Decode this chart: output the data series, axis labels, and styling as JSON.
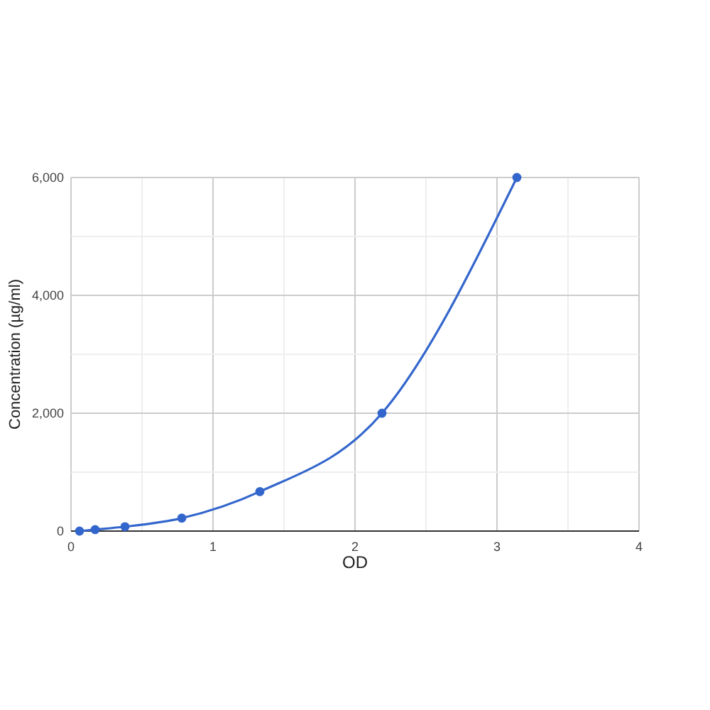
{
  "chart_data": {
    "type": "line",
    "xlabel": "OD",
    "ylabel": "Concentration (µg/ml)",
    "x": [
      0.06,
      0.17,
      0.38,
      0.78,
      1.33,
      2.19,
      3.14
    ],
    "series": [
      {
        "color": "#3366cc",
        "values": [
          0,
          25,
          75,
          220,
          670,
          2000,
          6000
        ]
      }
    ],
    "xlim": [
      0,
      4
    ],
    "ylim": [
      0,
      6000
    ],
    "xticks": [
      0,
      {
        "value": 0.5,
        "label": null
      },
      1,
      {
        "value": 1.5,
        "label": null
      },
      2,
      {
        "value": 2.5,
        "label": null
      },
      3,
      {
        "value": 3.5,
        "label": null
      },
      4
    ],
    "yticks": [
      {
        "value": 0,
        "label": "0"
      },
      {
        "value": 1000,
        "label": null
      },
      {
        "value": 2000,
        "label": "2,000"
      },
      {
        "value": 3000,
        "label": null
      },
      {
        "value": 4000,
        "label": "4,000"
      },
      {
        "value": 5000,
        "label": null
      },
      {
        "value": 6000,
        "label": "6,000"
      }
    ],
    "grid": true,
    "marker": "circle"
  }
}
